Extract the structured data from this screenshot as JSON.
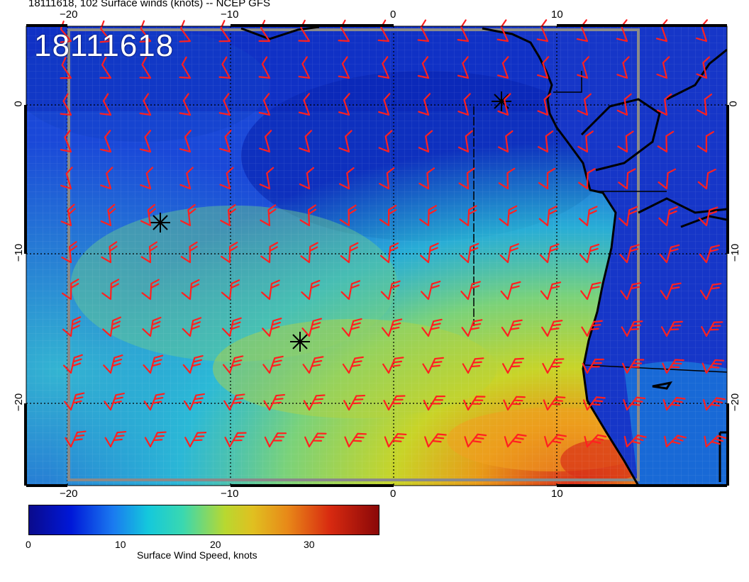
{
  "header": {
    "title": "18111618, 102 Surface winds (knots) -- NCEP GFS"
  },
  "map": {
    "stamp": "18111618",
    "top_ticks": [
      "−20",
      "−10",
      "0",
      "10"
    ],
    "bottom_ticks": [
      "−20",
      "−10",
      "0",
      "10"
    ],
    "left_ticks": [
      "0",
      "−10",
      "−20"
    ],
    "right_ticks": [
      "0",
      "−10",
      "−20"
    ],
    "barb_color": "#ff2020",
    "coast_color": "#000000"
  },
  "colorbar": {
    "title": "Surface Wind Speed, knots",
    "labels": [
      "0",
      "10",
      "20",
      "30"
    ]
  }
}
